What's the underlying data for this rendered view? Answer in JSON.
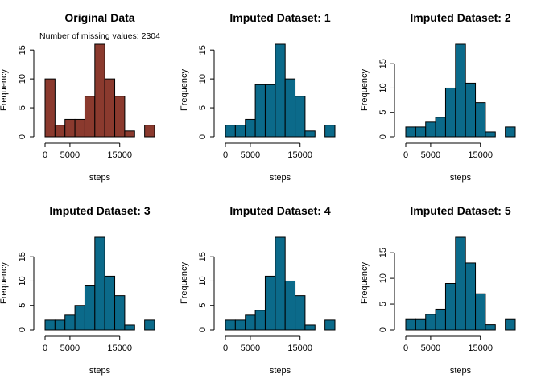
{
  "colors": {
    "original": "#8b3a2e",
    "imputed": "#0b6a8a",
    "stroke": "#000000"
  },
  "chart_data": [
    {
      "type": "bar",
      "title": "Original Data",
      "subtitle": "Number of missing values: 2304",
      "xlabel": "steps",
      "ylabel": "Frequency",
      "bin_width": 2000,
      "bin_start": 0,
      "values": [
        10,
        2,
        3,
        3,
        7,
        16,
        10,
        7,
        1,
        0,
        2
      ],
      "xlim": [
        0,
        22000
      ],
      "ylim": [
        0,
        16
      ],
      "xticks": [
        0,
        5000,
        15000
      ],
      "xtick_labels": [
        "0",
        "5000",
        "15000"
      ],
      "yticks": [
        0,
        5,
        10,
        15
      ],
      "ytick_labels": [
        "0",
        "5",
        "10",
        "15"
      ],
      "color_key": "original"
    },
    {
      "type": "bar",
      "title": "Imputed Dataset: 1",
      "xlabel": "steps",
      "ylabel": "Frequency",
      "bin_width": 2000,
      "bin_start": 0,
      "values": [
        2,
        2,
        3,
        9,
        9,
        16,
        10,
        7,
        1,
        0,
        2
      ],
      "xlim": [
        0,
        22000
      ],
      "ylim": [
        0,
        16
      ],
      "xticks": [
        0,
        5000,
        15000
      ],
      "xtick_labels": [
        "0",
        "5000",
        "15000"
      ],
      "yticks": [
        0,
        5,
        10,
        15
      ],
      "ytick_labels": [
        "0",
        "5",
        "10",
        "15"
      ],
      "color_key": "imputed"
    },
    {
      "type": "bar",
      "title": "Imputed Dataset: 2",
      "xlabel": "steps",
      "ylabel": "Frequency",
      "bin_width": 2000,
      "bin_start": 0,
      "values": [
        2,
        2,
        3,
        4,
        10,
        19,
        11,
        7,
        1,
        0,
        2
      ],
      "xlim": [
        0,
        22000
      ],
      "ylim": [
        0,
        19
      ],
      "xticks": [
        0,
        5000,
        15000
      ],
      "xtick_labels": [
        "0",
        "5000",
        "15000"
      ],
      "yticks": [
        0,
        5,
        10,
        15
      ],
      "ytick_labels": [
        "0",
        "5",
        "10",
        "15"
      ],
      "color_key": "imputed"
    },
    {
      "type": "bar",
      "title": "Imputed Dataset: 3",
      "xlabel": "steps",
      "ylabel": "Frequency",
      "bin_width": 2000,
      "bin_start": 0,
      "values": [
        2,
        2,
        3,
        5,
        9,
        19,
        11,
        7,
        1,
        0,
        2
      ],
      "xlim": [
        0,
        22000
      ],
      "ylim": [
        0,
        19
      ],
      "xticks": [
        0,
        5000,
        15000
      ],
      "xtick_labels": [
        "0",
        "5000",
        "15000"
      ],
      "yticks": [
        0,
        5,
        10,
        15
      ],
      "ytick_labels": [
        "0",
        "5",
        "10",
        "15"
      ],
      "color_key": "imputed"
    },
    {
      "type": "bar",
      "title": "Imputed Dataset: 4",
      "xlabel": "steps",
      "ylabel": "Frequency",
      "bin_width": 2000,
      "bin_start": 0,
      "values": [
        2,
        2,
        3,
        4,
        11,
        19,
        10,
        7,
        1,
        0,
        2
      ],
      "xlim": [
        0,
        22000
      ],
      "ylim": [
        0,
        19
      ],
      "xticks": [
        0,
        5000,
        15000
      ],
      "xtick_labels": [
        "0",
        "5000",
        "15000"
      ],
      "yticks": [
        0,
        5,
        10,
        15
      ],
      "ytick_labels": [
        "0",
        "5",
        "10",
        "15"
      ],
      "color_key": "imputed"
    },
    {
      "type": "bar",
      "title": "Imputed Dataset: 5",
      "xlabel": "steps",
      "ylabel": "Frequency",
      "bin_width": 2000,
      "bin_start": 0,
      "values": [
        2,
        2,
        3,
        4,
        9,
        18,
        13,
        7,
        1,
        0,
        2
      ],
      "xlim": [
        0,
        22000
      ],
      "ylim": [
        0,
        18
      ],
      "xticks": [
        0,
        5000,
        15000
      ],
      "xtick_labels": [
        "0",
        "5000",
        "15000"
      ],
      "yticks": [
        0,
        5,
        10,
        15
      ],
      "ytick_labels": [
        "0",
        "5",
        "10",
        "15"
      ],
      "color_key": "imputed"
    }
  ]
}
